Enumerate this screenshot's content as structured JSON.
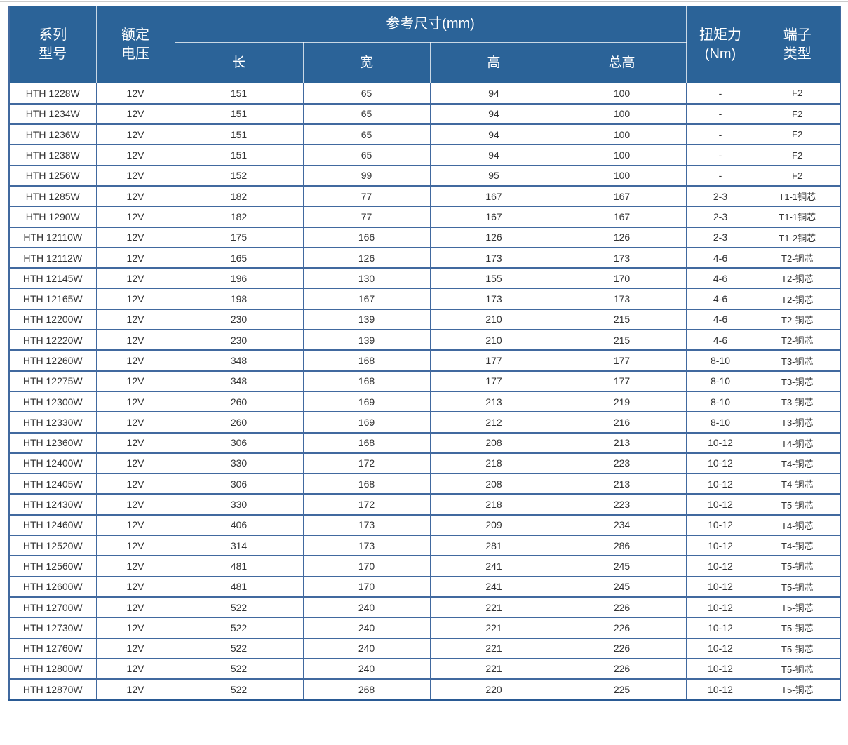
{
  "page": {
    "background": "#ffffff",
    "top_rule_color": "#cccccc"
  },
  "table": {
    "colors": {
      "header_bg": "#2b6398",
      "header_text": "#ffffff",
      "grid_border": "#41699f",
      "outer_bottom_border": "#2a5a94",
      "body_text": "#333333"
    },
    "header": {
      "col_series": "系列\n型号",
      "col_voltage": "额定\n电压",
      "col_dims_group": "参考尺寸(mm)",
      "col_length": "长",
      "col_width": "宽",
      "col_height": "高",
      "col_total_height": "总高",
      "col_torque": "扭矩力\n(Nm)",
      "col_terminal": "端子\n类型"
    },
    "rows": [
      [
        "HTH 1228W",
        "12V",
        "151",
        "65",
        "94",
        "100",
        "-",
        "F2"
      ],
      [
        "HTH 1234W",
        "12V",
        "151",
        "65",
        "94",
        "100",
        "-",
        "F2"
      ],
      [
        "HTH 1236W",
        "12V",
        "151",
        "65",
        "94",
        "100",
        "-",
        "F2"
      ],
      [
        "HTH 1238W",
        "12V",
        "151",
        "65",
        "94",
        "100",
        "-",
        "F2"
      ],
      [
        "HTH 1256W",
        "12V",
        "152",
        "99",
        "95",
        "100",
        "-",
        "F2"
      ],
      [
        "HTH 1285W",
        "12V",
        "182",
        "77",
        "167",
        "167",
        "2-3",
        "T1-1铜芯"
      ],
      [
        "HTH 1290W",
        "12V",
        "182",
        "77",
        "167",
        "167",
        "2-3",
        "T1-1铜芯"
      ],
      [
        "HTH 12110W",
        "12V",
        "175",
        "166",
        "126",
        "126",
        "2-3",
        "T1-2铜芯"
      ],
      [
        "HTH 12112W",
        "12V",
        "165",
        "126",
        "173",
        "173",
        "4-6",
        "T2-铜芯"
      ],
      [
        "HTH 12145W",
        "12V",
        "196",
        "130",
        "155",
        "170",
        "4-6",
        "T2-铜芯"
      ],
      [
        "HTH 12165W",
        "12V",
        "198",
        "167",
        "173",
        "173",
        "4-6",
        "T2-铜芯"
      ],
      [
        "HTH 12200W",
        "12V",
        "230",
        "139",
        "210",
        "215",
        "4-6",
        "T2-铜芯"
      ],
      [
        "HTH 12220W",
        "12V",
        "230",
        "139",
        "210",
        "215",
        "4-6",
        "T2-铜芯"
      ],
      [
        "HTH 12260W",
        "12V",
        "348",
        "168",
        "177",
        "177",
        "8-10",
        "T3-铜芯"
      ],
      [
        "HTH 12275W",
        "12V",
        "348",
        "168",
        "177",
        "177",
        "8-10",
        "T3-铜芯"
      ],
      [
        "HTH 12300W",
        "12V",
        "260",
        "169",
        "213",
        "219",
        "8-10",
        "T3-铜芯"
      ],
      [
        "HTH 12330W",
        "12V",
        "260",
        "169",
        "212",
        "216",
        "8-10",
        "T3-铜芯"
      ],
      [
        "HTH 12360W",
        "12V",
        "306",
        "168",
        "208",
        "213",
        "10-12",
        "T4-铜芯"
      ],
      [
        "HTH 12400W",
        "12V",
        "330",
        "172",
        "218",
        "223",
        "10-12",
        "T4-铜芯"
      ],
      [
        "HTH 12405W",
        "12V",
        "306",
        "168",
        "208",
        "213",
        "10-12",
        "T4-铜芯"
      ],
      [
        "HTH 12430W",
        "12V",
        "330",
        "172",
        "218",
        "223",
        "10-12",
        "T5-铜芯"
      ],
      [
        "HTH 12460W",
        "12V",
        "406",
        "173",
        "209",
        "234",
        "10-12",
        "T4-铜芯"
      ],
      [
        "HTH 12520W",
        "12V",
        "314",
        "173",
        "281",
        "286",
        "10-12",
        "T4-铜芯"
      ],
      [
        "HTH 12560W",
        "12V",
        "481",
        "170",
        "241",
        "245",
        "10-12",
        "T5-铜芯"
      ],
      [
        "HTH 12600W",
        "12V",
        "481",
        "170",
        "241",
        "245",
        "10-12",
        "T5-铜芯"
      ],
      [
        "HTH 12700W",
        "12V",
        "522",
        "240",
        "221",
        "226",
        "10-12",
        "T5-铜芯"
      ],
      [
        "HTH 12730W",
        "12V",
        "522",
        "240",
        "221",
        "226",
        "10-12",
        "T5-铜芯"
      ],
      [
        "HTH 12760W",
        "12V",
        "522",
        "240",
        "221",
        "226",
        "10-12",
        "T5-铜芯"
      ],
      [
        "HTH 12800W",
        "12V",
        "522",
        "240",
        "221",
        "226",
        "10-12",
        "T5-铜芯"
      ],
      [
        "HTH 12870W",
        "12V",
        "522",
        "268",
        "220",
        "225",
        "10-12",
        "T5-铜芯"
      ]
    ]
  }
}
